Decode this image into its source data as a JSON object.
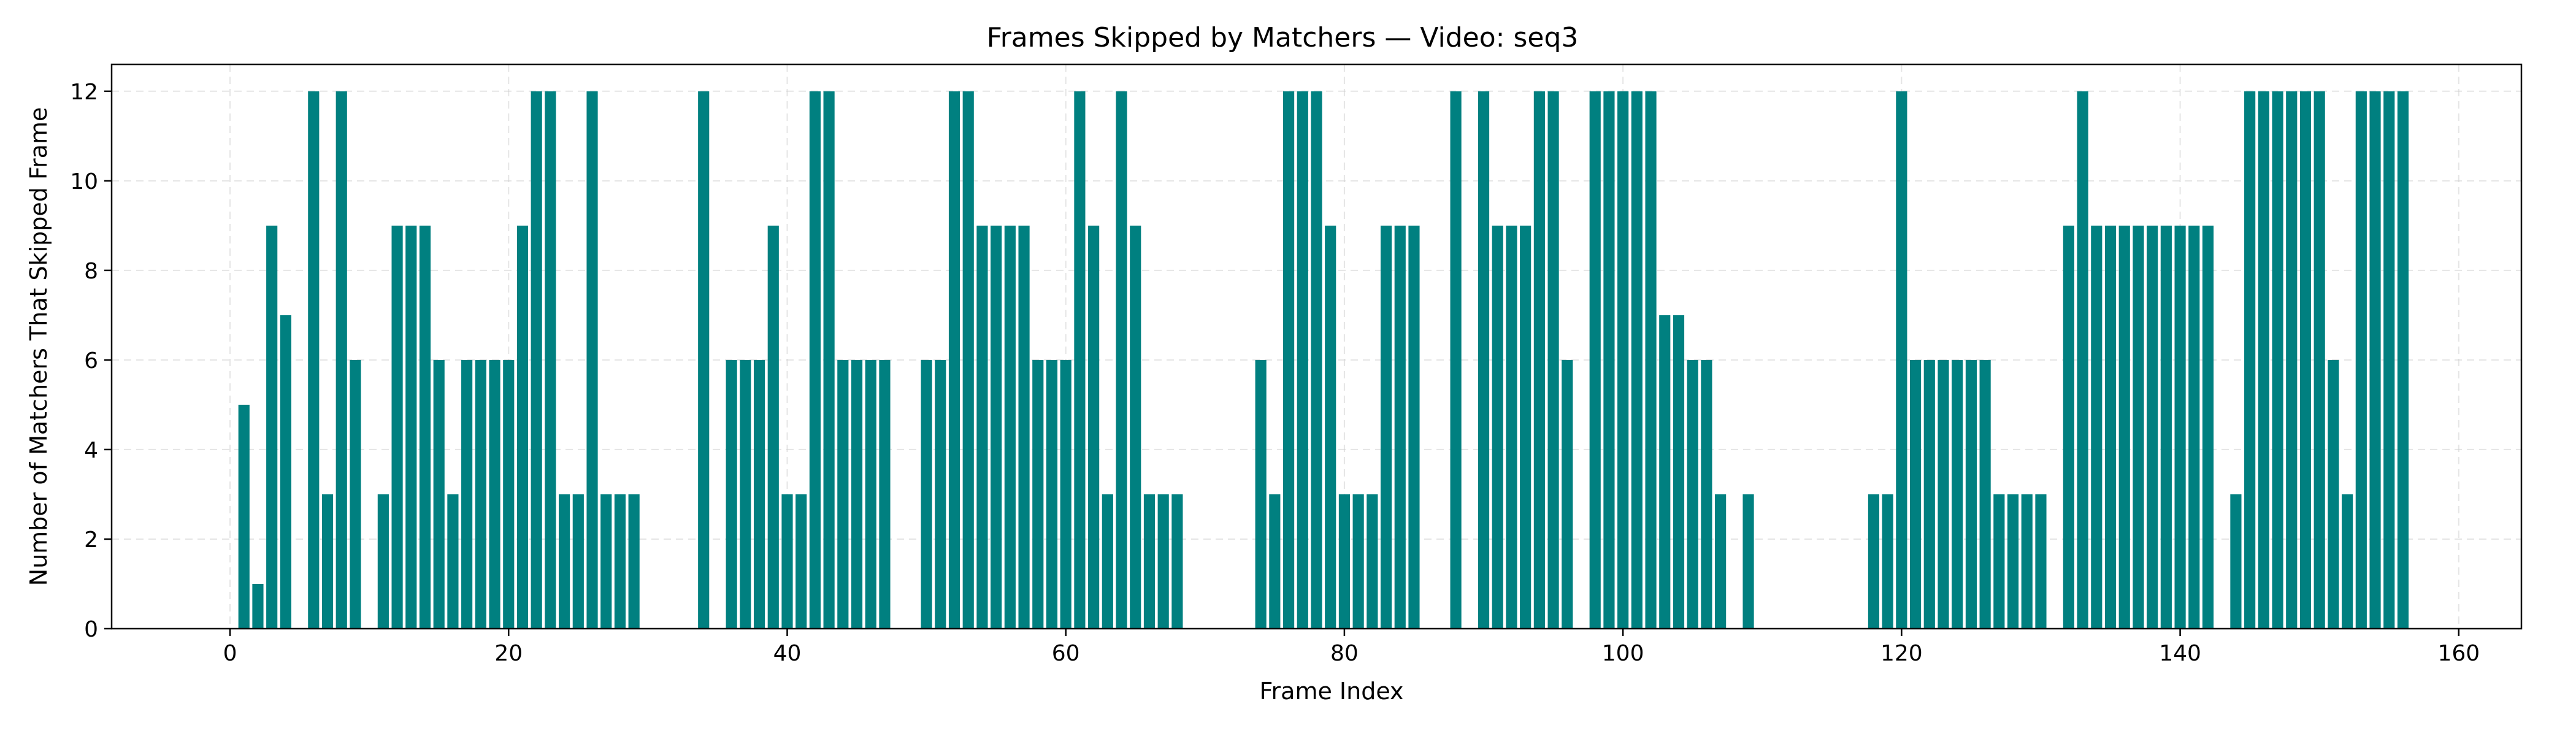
{
  "chart_data": {
    "type": "bar",
    "title": "Frames Skipped by Matchers — Video: seq3",
    "xlabel": "Frame Index",
    "ylabel": "Number of Matchers That Skipped Frame",
    "xlim": [
      -8.5,
      164.5
    ],
    "ylim": [
      0,
      12.6
    ],
    "xticks": [
      0,
      20,
      40,
      60,
      80,
      100,
      120,
      140,
      160
    ],
    "yticks": [
      0,
      2,
      4,
      6,
      8,
      10,
      12
    ],
    "grid": true,
    "bar_color": "#008080",
    "x": [
      1,
      2,
      3,
      4,
      6,
      7,
      8,
      9,
      11,
      12,
      13,
      14,
      15,
      16,
      17,
      18,
      19,
      20,
      21,
      22,
      23,
      24,
      25,
      26,
      27,
      28,
      29,
      34,
      36,
      37,
      38,
      39,
      40,
      41,
      42,
      43,
      44,
      45,
      46,
      47,
      50,
      51,
      52,
      53,
      54,
      55,
      56,
      57,
      58,
      59,
      60,
      61,
      62,
      63,
      64,
      65,
      66,
      67,
      68,
      74,
      75,
      76,
      77,
      78,
      79,
      80,
      81,
      82,
      83,
      84,
      85,
      88,
      90,
      91,
      92,
      93,
      94,
      95,
      96,
      98,
      99,
      100,
      101,
      102,
      103,
      104,
      105,
      106,
      107,
      109,
      118,
      119,
      120,
      121,
      122,
      123,
      124,
      125,
      126,
      127,
      128,
      129,
      130,
      132,
      133,
      134,
      135,
      136,
      137,
      138,
      139,
      140,
      141,
      142,
      144,
      145,
      146,
      147,
      148,
      149,
      150,
      151,
      152,
      153,
      154,
      155,
      156
    ],
    "values": [
      5,
      1,
      9,
      7,
      12,
      3,
      12,
      6,
      3,
      9,
      9,
      9,
      6,
      3,
      6,
      6,
      6,
      6,
      9,
      12,
      12,
      3,
      3,
      12,
      3,
      3,
      3,
      12,
      6,
      6,
      6,
      9,
      3,
      3,
      12,
      12,
      6,
      6,
      6,
      6,
      6,
      6,
      12,
      12,
      9,
      9,
      9,
      9,
      6,
      6,
      6,
      12,
      9,
      3,
      12,
      9,
      3,
      3,
      3,
      6,
      3,
      12,
      12,
      12,
      9,
      3,
      3,
      3,
      9,
      9,
      9,
      12,
      12,
      9,
      9,
      9,
      12,
      12,
      6,
      12,
      12,
      12,
      12,
      12,
      7,
      7,
      6,
      6,
      3,
      3,
      3,
      3,
      12,
      6,
      6,
      6,
      6,
      6,
      6,
      3,
      3,
      3,
      3,
      9,
      12,
      9,
      9,
      9,
      9,
      9,
      9,
      9,
      9,
      9,
      3,
      12,
      12,
      12,
      12,
      12,
      12,
      6,
      3,
      12,
      12,
      12,
      12
    ]
  }
}
